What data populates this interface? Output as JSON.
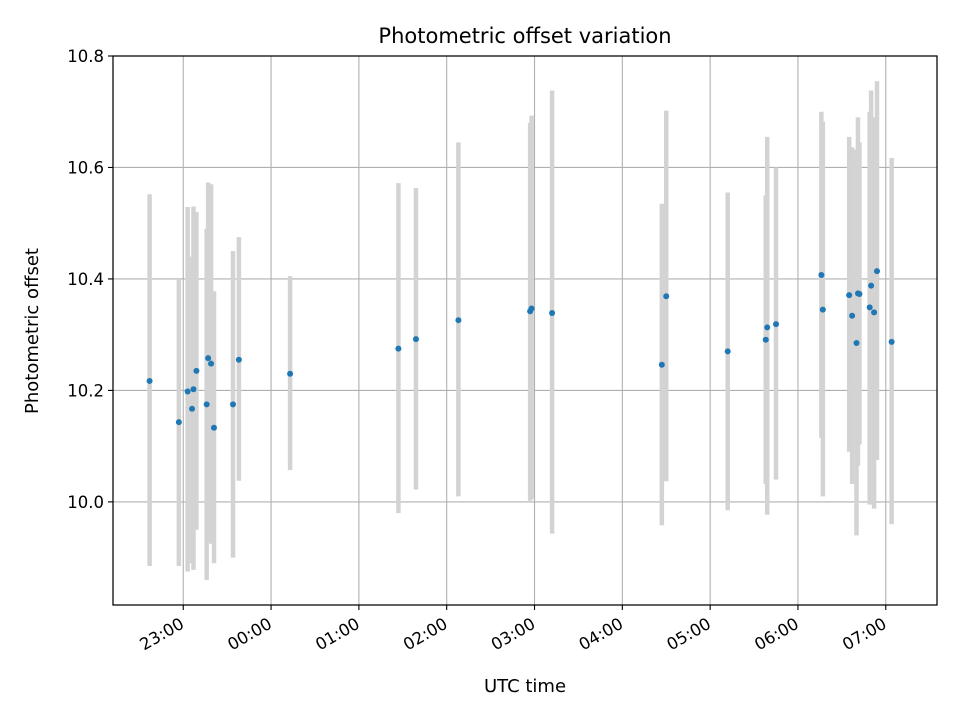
{
  "chart_data": {
    "type": "scatter",
    "title": "Photometric offset variation",
    "xlabel": "UTC time",
    "ylabel": "Photometric offset",
    "x_unit": "hours from 00:00 UTC",
    "xlim": [
      "22:12",
      "07:35"
    ],
    "ylim": [
      9.815,
      10.8
    ],
    "x_ticks": [
      "23:00",
      "00:00",
      "01:00",
      "02:00",
      "03:00",
      "04:00",
      "05:00",
      "06:00",
      "07:00"
    ],
    "y_ticks": [
      "10.0",
      "10.2",
      "10.4",
      "10.6",
      "10.8"
    ],
    "grid": true,
    "legend": "none",
    "marker_color": "#1f77b4",
    "errorbar_color": "#d3d3d3",
    "points": [
      {
        "time": "22:37",
        "y": 10.217,
        "ylow": 9.885,
        "yhigh": 10.552
      },
      {
        "time": "22:57",
        "y": 10.143,
        "ylow": 9.885,
        "yhigh": 10.4
      },
      {
        "time": "23:03",
        "y": 10.198,
        "ylow": 9.875,
        "yhigh": 10.529
      },
      {
        "time": "23:06",
        "y": 10.167,
        "ylow": 9.89,
        "yhigh": 10.44
      },
      {
        "time": "23:07",
        "y": 10.202,
        "ylow": 9.878,
        "yhigh": 10.53
      },
      {
        "time": "23:09",
        "y": 10.235,
        "ylow": 9.95,
        "yhigh": 10.52
      },
      {
        "time": "23:16",
        "y": 10.175,
        "ylow": 9.86,
        "yhigh": 10.49
      },
      {
        "time": "23:17",
        "y": 10.258,
        "ylow": 9.93,
        "yhigh": 10.573
      },
      {
        "time": "23:19",
        "y": 10.248,
        "ylow": 9.925,
        "yhigh": 10.57
      },
      {
        "time": "23:21",
        "y": 10.133,
        "ylow": 9.89,
        "yhigh": 10.378
      },
      {
        "time": "23:34",
        "y": 10.175,
        "ylow": 9.9,
        "yhigh": 10.45
      },
      {
        "time": "23:38",
        "y": 10.255,
        "ylow": 10.038,
        "yhigh": 10.475
      },
      {
        "time": "00:13",
        "y": 10.23,
        "ylow": 10.057,
        "yhigh": 10.405
      },
      {
        "time": "01:27",
        "y": 10.275,
        "ylow": 9.98,
        "yhigh": 10.572
      },
      {
        "time": "01:39",
        "y": 10.292,
        "ylow": 10.022,
        "yhigh": 10.563
      },
      {
        "time": "02:08",
        "y": 10.326,
        "ylow": 10.01,
        "yhigh": 10.645
      },
      {
        "time": "02:57",
        "y": 10.342,
        "ylow": 10.002,
        "yhigh": 10.68
      },
      {
        "time": "02:58",
        "y": 10.347,
        "ylow": 10.005,
        "yhigh": 10.693
      },
      {
        "time": "03:12",
        "y": 10.339,
        "ylow": 9.943,
        "yhigh": 10.738
      },
      {
        "time": "04:27",
        "y": 10.246,
        "ylow": 9.958,
        "yhigh": 10.535
      },
      {
        "time": "04:30",
        "y": 10.369,
        "ylow": 10.037,
        "yhigh": 10.702
      },
      {
        "time": "05:12",
        "y": 10.27,
        "ylow": 9.985,
        "yhigh": 10.555
      },
      {
        "time": "05:38",
        "y": 10.291,
        "ylow": 10.032,
        "yhigh": 10.55
      },
      {
        "time": "05:39",
        "y": 10.313,
        "ylow": 9.977,
        "yhigh": 10.655
      },
      {
        "time": "05:45",
        "y": 10.319,
        "ylow": 10.04,
        "yhigh": 10.6
      },
      {
        "time": "06:16",
        "y": 10.407,
        "ylow": 10.115,
        "yhigh": 10.7
      },
      {
        "time": "06:17",
        "y": 10.345,
        "ylow": 10.01,
        "yhigh": 10.682
      },
      {
        "time": "06:35",
        "y": 10.371,
        "ylow": 10.09,
        "yhigh": 10.655
      },
      {
        "time": "06:37",
        "y": 10.334,
        "ylow": 10.032,
        "yhigh": 10.636
      },
      {
        "time": "06:40",
        "y": 10.285,
        "ylow": 9.94,
        "yhigh": 10.632
      },
      {
        "time": "06:41",
        "y": 10.374,
        "ylow": 10.065,
        "yhigh": 10.69
      },
      {
        "time": "06:42",
        "y": 10.373,
        "ylow": 10.103,
        "yhigh": 10.645
      },
      {
        "time": "06:49",
        "y": 10.349,
        "ylow": 9.995,
        "yhigh": 10.7
      },
      {
        "time": "06:50",
        "y": 10.388,
        "ylow": 10.04,
        "yhigh": 10.738
      },
      {
        "time": "06:52",
        "y": 10.34,
        "ylow": 9.988,
        "yhigh": 10.69
      },
      {
        "time": "06:54",
        "y": 10.414,
        "ylow": 10.075,
        "yhigh": 10.755
      },
      {
        "time": "07:04",
        "y": 10.287,
        "ylow": 9.96,
        "yhigh": 10.617
      }
    ]
  }
}
